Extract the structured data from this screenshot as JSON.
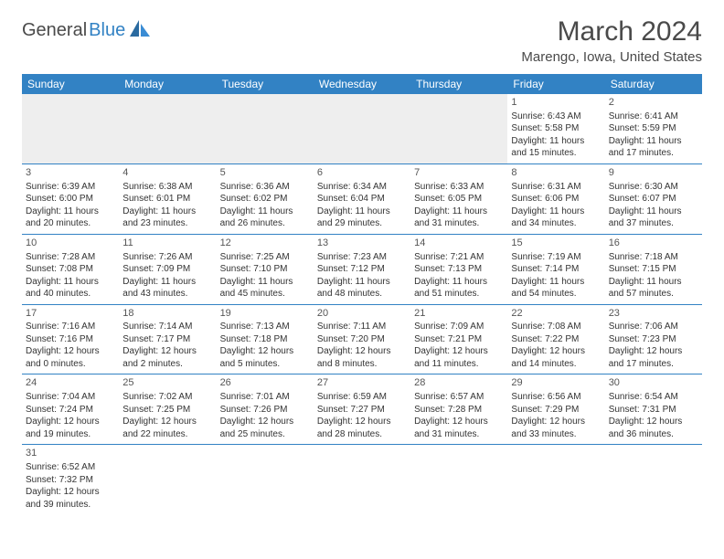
{
  "logo": {
    "part1": "General",
    "part2": "Blue"
  },
  "title": "March 2024",
  "location": "Marengo, Iowa, United States",
  "colors": {
    "header_bg": "#3282c4",
    "header_text": "#ffffff",
    "border": "#3282c4",
    "text": "#333333",
    "muted_bg": "#eeeeee"
  },
  "weekdays": [
    "Sunday",
    "Monday",
    "Tuesday",
    "Wednesday",
    "Thursday",
    "Friday",
    "Saturday"
  ],
  "weeks": [
    [
      null,
      null,
      null,
      null,
      null,
      {
        "n": "1",
        "sr": "Sunrise: 6:43 AM",
        "ss": "Sunset: 5:58 PM",
        "dl": "Daylight: 11 hours and 15 minutes."
      },
      {
        "n": "2",
        "sr": "Sunrise: 6:41 AM",
        "ss": "Sunset: 5:59 PM",
        "dl": "Daylight: 11 hours and 17 minutes."
      }
    ],
    [
      {
        "n": "3",
        "sr": "Sunrise: 6:39 AM",
        "ss": "Sunset: 6:00 PM",
        "dl": "Daylight: 11 hours and 20 minutes."
      },
      {
        "n": "4",
        "sr": "Sunrise: 6:38 AM",
        "ss": "Sunset: 6:01 PM",
        "dl": "Daylight: 11 hours and 23 minutes."
      },
      {
        "n": "5",
        "sr": "Sunrise: 6:36 AM",
        "ss": "Sunset: 6:02 PM",
        "dl": "Daylight: 11 hours and 26 minutes."
      },
      {
        "n": "6",
        "sr": "Sunrise: 6:34 AM",
        "ss": "Sunset: 6:04 PM",
        "dl": "Daylight: 11 hours and 29 minutes."
      },
      {
        "n": "7",
        "sr": "Sunrise: 6:33 AM",
        "ss": "Sunset: 6:05 PM",
        "dl": "Daylight: 11 hours and 31 minutes."
      },
      {
        "n": "8",
        "sr": "Sunrise: 6:31 AM",
        "ss": "Sunset: 6:06 PM",
        "dl": "Daylight: 11 hours and 34 minutes."
      },
      {
        "n": "9",
        "sr": "Sunrise: 6:30 AM",
        "ss": "Sunset: 6:07 PM",
        "dl": "Daylight: 11 hours and 37 minutes."
      }
    ],
    [
      {
        "n": "10",
        "sr": "Sunrise: 7:28 AM",
        "ss": "Sunset: 7:08 PM",
        "dl": "Daylight: 11 hours and 40 minutes."
      },
      {
        "n": "11",
        "sr": "Sunrise: 7:26 AM",
        "ss": "Sunset: 7:09 PM",
        "dl": "Daylight: 11 hours and 43 minutes."
      },
      {
        "n": "12",
        "sr": "Sunrise: 7:25 AM",
        "ss": "Sunset: 7:10 PM",
        "dl": "Daylight: 11 hours and 45 minutes."
      },
      {
        "n": "13",
        "sr": "Sunrise: 7:23 AM",
        "ss": "Sunset: 7:12 PM",
        "dl": "Daylight: 11 hours and 48 minutes."
      },
      {
        "n": "14",
        "sr": "Sunrise: 7:21 AM",
        "ss": "Sunset: 7:13 PM",
        "dl": "Daylight: 11 hours and 51 minutes."
      },
      {
        "n": "15",
        "sr": "Sunrise: 7:19 AM",
        "ss": "Sunset: 7:14 PM",
        "dl": "Daylight: 11 hours and 54 minutes."
      },
      {
        "n": "16",
        "sr": "Sunrise: 7:18 AM",
        "ss": "Sunset: 7:15 PM",
        "dl": "Daylight: 11 hours and 57 minutes."
      }
    ],
    [
      {
        "n": "17",
        "sr": "Sunrise: 7:16 AM",
        "ss": "Sunset: 7:16 PM",
        "dl": "Daylight: 12 hours and 0 minutes."
      },
      {
        "n": "18",
        "sr": "Sunrise: 7:14 AM",
        "ss": "Sunset: 7:17 PM",
        "dl": "Daylight: 12 hours and 2 minutes."
      },
      {
        "n": "19",
        "sr": "Sunrise: 7:13 AM",
        "ss": "Sunset: 7:18 PM",
        "dl": "Daylight: 12 hours and 5 minutes."
      },
      {
        "n": "20",
        "sr": "Sunrise: 7:11 AM",
        "ss": "Sunset: 7:20 PM",
        "dl": "Daylight: 12 hours and 8 minutes."
      },
      {
        "n": "21",
        "sr": "Sunrise: 7:09 AM",
        "ss": "Sunset: 7:21 PM",
        "dl": "Daylight: 12 hours and 11 minutes."
      },
      {
        "n": "22",
        "sr": "Sunrise: 7:08 AM",
        "ss": "Sunset: 7:22 PM",
        "dl": "Daylight: 12 hours and 14 minutes."
      },
      {
        "n": "23",
        "sr": "Sunrise: 7:06 AM",
        "ss": "Sunset: 7:23 PM",
        "dl": "Daylight: 12 hours and 17 minutes."
      }
    ],
    [
      {
        "n": "24",
        "sr": "Sunrise: 7:04 AM",
        "ss": "Sunset: 7:24 PM",
        "dl": "Daylight: 12 hours and 19 minutes."
      },
      {
        "n": "25",
        "sr": "Sunrise: 7:02 AM",
        "ss": "Sunset: 7:25 PM",
        "dl": "Daylight: 12 hours and 22 minutes."
      },
      {
        "n": "26",
        "sr": "Sunrise: 7:01 AM",
        "ss": "Sunset: 7:26 PM",
        "dl": "Daylight: 12 hours and 25 minutes."
      },
      {
        "n": "27",
        "sr": "Sunrise: 6:59 AM",
        "ss": "Sunset: 7:27 PM",
        "dl": "Daylight: 12 hours and 28 minutes."
      },
      {
        "n": "28",
        "sr": "Sunrise: 6:57 AM",
        "ss": "Sunset: 7:28 PM",
        "dl": "Daylight: 12 hours and 31 minutes."
      },
      {
        "n": "29",
        "sr": "Sunrise: 6:56 AM",
        "ss": "Sunset: 7:29 PM",
        "dl": "Daylight: 12 hours and 33 minutes."
      },
      {
        "n": "30",
        "sr": "Sunrise: 6:54 AM",
        "ss": "Sunset: 7:31 PM",
        "dl": "Daylight: 12 hours and 36 minutes."
      }
    ],
    [
      {
        "n": "31",
        "sr": "Sunrise: 6:52 AM",
        "ss": "Sunset: 7:32 PM",
        "dl": "Daylight: 12 hours and 39 minutes."
      },
      null,
      null,
      null,
      null,
      null,
      null
    ]
  ]
}
